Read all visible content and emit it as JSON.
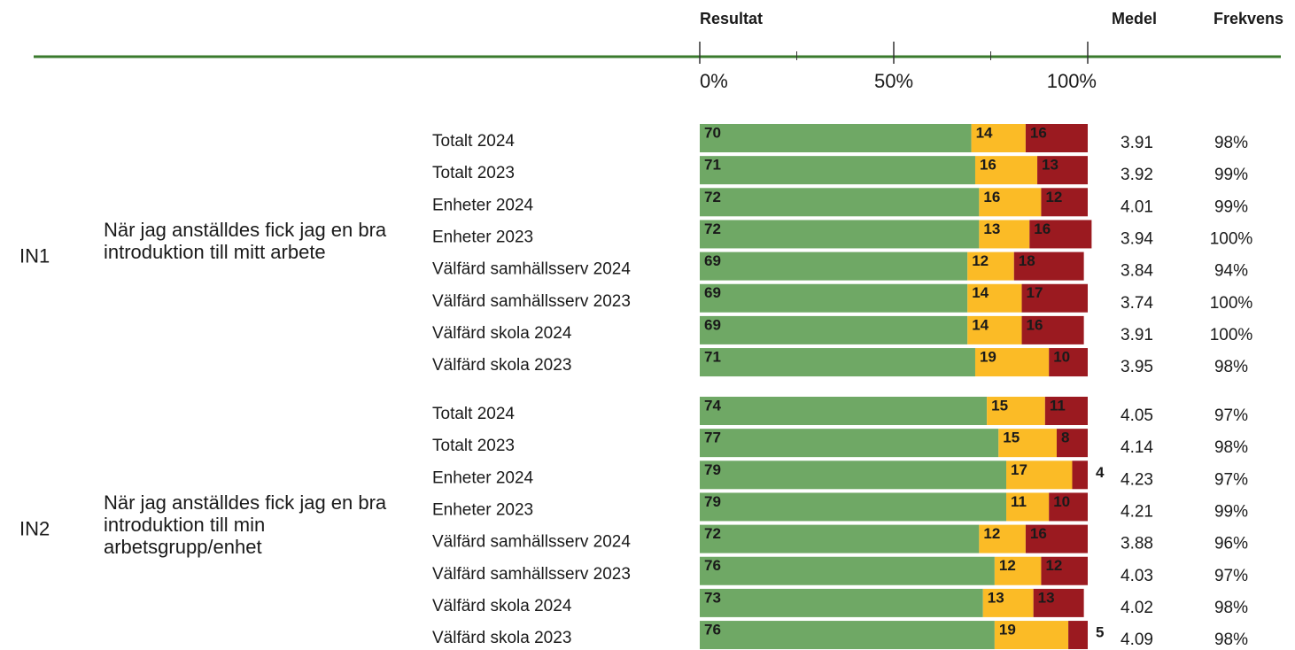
{
  "chart_data": {
    "type": "bar",
    "stacked": true,
    "orientation": "horizontal",
    "headers": {
      "result": "Resultat",
      "mean": "Medel",
      "freq": "Frekvens"
    },
    "xlim": [
      0,
      100
    ],
    "xticks": [
      {
        "value": 0,
        "label": "0%"
      },
      {
        "value": 50,
        "label": "50%"
      },
      {
        "value": 100,
        "label": "100%"
      }
    ],
    "xticks_minor": [
      25,
      75
    ],
    "colors": [
      "#6fa865",
      "#fbbb26",
      "#9b1a20"
    ],
    "groups": [
      {
        "code": "IN1",
        "question": "När jag anställdes fick jag en bra introduktion till mitt arbete",
        "rows": [
          {
            "label": "Totalt 2024",
            "values": [
              70,
              14,
              16
            ],
            "mean": 3.91,
            "freq": "98%"
          },
          {
            "label": "Totalt 2023",
            "values": [
              71,
              16,
              13
            ],
            "mean": 3.92,
            "freq": "99%"
          },
          {
            "label": "Enheter 2024",
            "values": [
              72,
              16,
              12
            ],
            "mean": 4.01,
            "freq": "99%"
          },
          {
            "label": "Enheter 2023",
            "values": [
              72,
              13,
              16
            ],
            "mean": 3.94,
            "freq": "100%"
          },
          {
            "label": "Välfärd samhällsserv 2024",
            "values": [
              69,
              12,
              18
            ],
            "mean": 3.84,
            "freq": "94%"
          },
          {
            "label": "Välfärd samhällsserv 2023",
            "values": [
              69,
              14,
              17
            ],
            "mean": 3.74,
            "freq": "100%"
          },
          {
            "label": "Välfärd skola 2024",
            "values": [
              69,
              14,
              16
            ],
            "mean": 3.91,
            "freq": "100%"
          },
          {
            "label": "Välfärd skola 2023",
            "values": [
              71,
              19,
              10
            ],
            "mean": 3.95,
            "freq": "98%"
          }
        ]
      },
      {
        "code": "IN2",
        "question": "När jag anställdes fick jag en bra introduktion till min arbetsgrupp/enhet",
        "rows": [
          {
            "label": "Totalt 2024",
            "values": [
              74,
              15,
              11
            ],
            "mean": 4.05,
            "freq": "97%"
          },
          {
            "label": "Totalt 2023",
            "values": [
              77,
              15,
              8
            ],
            "mean": 4.14,
            "freq": "98%"
          },
          {
            "label": "Enheter 2024",
            "values": [
              79,
              17,
              4
            ],
            "mean": 4.23,
            "freq": "97%"
          },
          {
            "label": "Enheter 2023",
            "values": [
              79,
              11,
              10
            ],
            "mean": 4.21,
            "freq": "99%"
          },
          {
            "label": "Välfärd samhällsserv 2024",
            "values": [
              72,
              12,
              16
            ],
            "mean": 3.88,
            "freq": "96%"
          },
          {
            "label": "Välfärd samhällsserv 2023",
            "values": [
              76,
              12,
              12
            ],
            "mean": 4.03,
            "freq": "97%"
          },
          {
            "label": "Välfärd skola 2024",
            "values": [
              73,
              13,
              13
            ],
            "mean": 4.02,
            "freq": "98%"
          },
          {
            "label": "Välfärd skola 2023",
            "values": [
              76,
              19,
              5
            ],
            "mean": 4.09,
            "freq": "98%"
          }
        ]
      }
    ]
  }
}
